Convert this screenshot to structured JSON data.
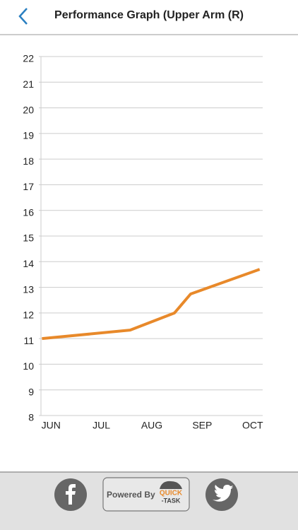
{
  "header": {
    "title": "Performance Graph (Upper Arm (R)"
  },
  "chart_data": {
    "type": "line",
    "x": [
      -0.18,
      1.57,
      2.45,
      2.77,
      4.14
    ],
    "series": [
      {
        "name": "Upper Arm (R)",
        "color": "#e8892a",
        "values": [
          11,
          11.33,
          12,
          12.74,
          13.7
        ]
      }
    ],
    "xlim": [
      -0.2,
      4.2
    ],
    "xticks": [
      {
        "value": 0,
        "label": "JUN"
      },
      {
        "value": 1,
        "label": "JUL"
      },
      {
        "value": 2,
        "label": "AUG"
      },
      {
        "value": 3,
        "label": "SEP"
      },
      {
        "value": 4,
        "label": "OCT"
      }
    ],
    "ylim": [
      8,
      22
    ],
    "yticks": [
      8,
      9,
      10,
      11,
      12,
      13,
      14,
      15,
      16,
      17,
      18,
      19,
      20,
      21,
      22
    ],
    "grid": true
  },
  "footer": {
    "powered_by": "Powered By",
    "logo_top": "QUICK",
    "logo_bottom": "-TASK"
  }
}
